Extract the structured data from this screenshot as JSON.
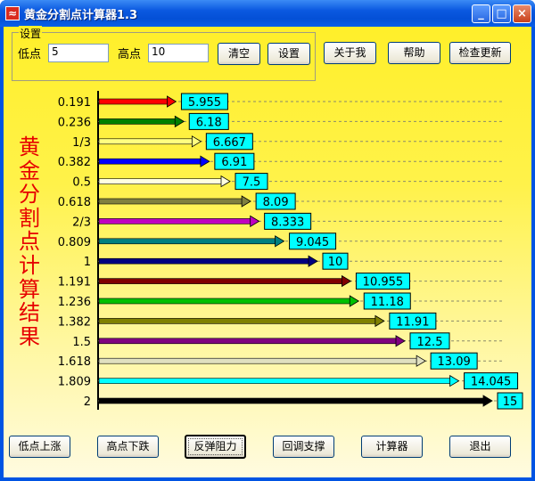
{
  "window": {
    "title": "黄金分割点计算器1.3",
    "app_icon": "golden-ratio-app-icon",
    "controls": {
      "minimize": "_",
      "maximize": "□",
      "close": "×"
    }
  },
  "settings": {
    "group_label": "设置",
    "low_label": "低点",
    "low_value": "5",
    "high_label": "高点",
    "high_value": "10",
    "clear_label": "清空",
    "set_label": "设置"
  },
  "top_buttons": {
    "about": "关于我",
    "help": "帮助",
    "update": "检查更新"
  },
  "side_title": "黄金分割点计算结果",
  "levels": [
    {
      "ratio": "0.191",
      "value": "5.955",
      "v": 5.955,
      "color": "#ff0000"
    },
    {
      "ratio": "0.236",
      "value": "6.18",
      "v": 6.18,
      "color": "#008000"
    },
    {
      "ratio": "1/3",
      "value": "6.667",
      "v": 6.667,
      "color": "#ffff80"
    },
    {
      "ratio": "0.382",
      "value": "6.91",
      "v": 6.91,
      "color": "#0000ff"
    },
    {
      "ratio": "0.5",
      "value": "7.5",
      "v": 7.5,
      "color": "#ffffe0"
    },
    {
      "ratio": "0.618",
      "value": "8.09",
      "v": 8.09,
      "color": "#808040"
    },
    {
      "ratio": "2/3",
      "value": "8.333",
      "v": 8.333,
      "color": "#c000c0"
    },
    {
      "ratio": "0.809",
      "value": "9.045",
      "v": 9.045,
      "color": "#008080"
    },
    {
      "ratio": "1",
      "value": "10",
      "v": 10,
      "color": "#000080"
    },
    {
      "ratio": "1.191",
      "value": "10.955",
      "v": 10.955,
      "color": "#800000"
    },
    {
      "ratio": "1.236",
      "value": "11.18",
      "v": 11.18,
      "color": "#00c000"
    },
    {
      "ratio": "1.382",
      "value": "11.91",
      "v": 11.91,
      "color": "#808000"
    },
    {
      "ratio": "1.5",
      "value": "12.5",
      "v": 12.5,
      "color": "#800080"
    },
    {
      "ratio": "1.618",
      "value": "13.09",
      "v": 13.09,
      "color": "#e0e0c0"
    },
    {
      "ratio": "1.809",
      "value": "14.045",
      "v": 14.045,
      "color": "#00ffff"
    },
    {
      "ratio": "2",
      "value": "15",
      "v": 15,
      "color": "#000000"
    }
  ],
  "value_box_color": "#00ffff",
  "bottom_buttons": {
    "low_rise": "低点上涨",
    "high_fall": "高点下跌",
    "rebound_resistance": "反弹阻力",
    "pullback_support": "回调支撑",
    "calculator": "计算器",
    "exit": "退出"
  }
}
